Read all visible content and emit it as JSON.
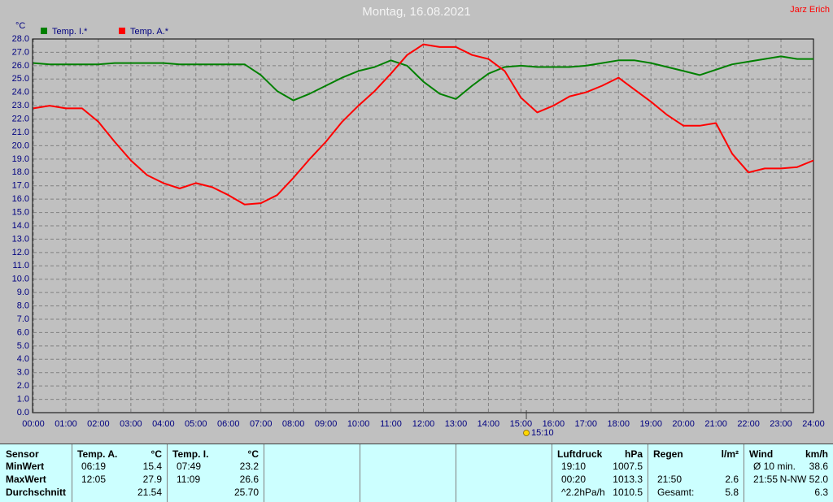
{
  "header": {
    "title": "Montag, 16.08.2021",
    "author": "Jarz Erich"
  },
  "chart_data": {
    "type": "line",
    "y_unit": "°C",
    "x": [
      0,
      0.5,
      1,
      1.5,
      2,
      2.5,
      3,
      3.5,
      4,
      4.5,
      5,
      5.5,
      6,
      6.5,
      7,
      7.5,
      8,
      8.5,
      9,
      9.5,
      10,
      10.5,
      11,
      11.5,
      12,
      12.5,
      13,
      13.5,
      14,
      14.5,
      15,
      15.5,
      16,
      16.5,
      17,
      17.5,
      18,
      18.5,
      19,
      19.5,
      20,
      20.5,
      21,
      21.5,
      22,
      22.5,
      23,
      23.5,
      24
    ],
    "series": [
      {
        "name": "Temp. I.*",
        "color": "#008000",
        "values": [
          26.2,
          26.1,
          26.1,
          26.1,
          26.1,
          26.2,
          26.2,
          26.2,
          26.2,
          26.1,
          26.1,
          26.1,
          26.1,
          26.1,
          25.3,
          24.1,
          23.4,
          23.9,
          24.5,
          25.1,
          25.6,
          25.9,
          26.4,
          26.0,
          24.8,
          23.9,
          23.5,
          24.5,
          25.4,
          25.9,
          26.0,
          25.9,
          25.9,
          25.9,
          26.0,
          26.2,
          26.4,
          26.4,
          26.2,
          25.9,
          25.6,
          25.3,
          25.7,
          26.1,
          26.3,
          26.5,
          26.7,
          26.5,
          26.5
        ]
      },
      {
        "name": "Temp. A.*",
        "color": "#ff0000",
        "values": [
          22.8,
          23.0,
          22.8,
          22.8,
          21.8,
          20.3,
          18.9,
          17.8,
          17.2,
          16.8,
          17.2,
          16.9,
          16.3,
          15.6,
          15.7,
          16.3,
          17.6,
          19.0,
          20.3,
          21.8,
          23.0,
          24.1,
          25.4,
          26.8,
          27.6,
          27.4,
          27.4,
          26.8,
          26.5,
          25.6,
          23.6,
          22.5,
          23.0,
          23.7,
          24.0,
          24.5,
          25.1,
          24.2,
          23.3,
          22.3,
          21.5,
          21.5,
          21.7,
          19.4,
          18.0,
          18.3,
          18.3,
          18.4,
          18.9
        ]
      }
    ],
    "xlim": [
      0,
      24
    ],
    "xticks": [
      {
        "value": 0,
        "label": "00:00"
      },
      {
        "value": 1,
        "label": "01:00"
      },
      {
        "value": 2,
        "label": "02:00"
      },
      {
        "value": 3,
        "label": "03:00"
      },
      {
        "value": 4,
        "label": "04:00"
      },
      {
        "value": 5,
        "label": "05:00"
      },
      {
        "value": 6,
        "label": "06:00"
      },
      {
        "value": 7,
        "label": "07:00"
      },
      {
        "value": 8,
        "label": "08:00"
      },
      {
        "value": 9,
        "label": "09:00"
      },
      {
        "value": 10,
        "label": "10:00"
      },
      {
        "value": 11,
        "label": "11:00"
      },
      {
        "value": 12,
        "label": "12:00"
      },
      {
        "value": 13,
        "label": "13:00"
      },
      {
        "value": 14,
        "label": "14:00"
      },
      {
        "value": 15,
        "label": "15:00"
      },
      {
        "value": 16,
        "label": "16:00"
      },
      {
        "value": 17,
        "label": "17:00"
      },
      {
        "value": 18,
        "label": "18:00"
      },
      {
        "value": 19,
        "label": "19:00"
      },
      {
        "value": 20,
        "label": "20:00"
      },
      {
        "value": 21,
        "label": "21:00"
      },
      {
        "value": 22,
        "label": "22:00"
      },
      {
        "value": 23,
        "label": "23:00"
      },
      {
        "value": 24,
        "label": "24:00"
      }
    ],
    "ylim": [
      0,
      28
    ],
    "yticks": [
      {
        "value": 0,
        "label": "0.0"
      },
      {
        "value": 1,
        "label": "1.0"
      },
      {
        "value": 2,
        "label": "2.0"
      },
      {
        "value": 3,
        "label": "3.0"
      },
      {
        "value": 4,
        "label": "4.0"
      },
      {
        "value": 5,
        "label": "5.0"
      },
      {
        "value": 6,
        "label": "6.0"
      },
      {
        "value": 7,
        "label": "7.0"
      },
      {
        "value": 8,
        "label": "8.0"
      },
      {
        "value": 9,
        "label": "9.0"
      },
      {
        "value": 10,
        "label": "10.0"
      },
      {
        "value": 11,
        "label": "11.0"
      },
      {
        "value": 12,
        "label": "12.0"
      },
      {
        "value": 13,
        "label": "13.0"
      },
      {
        "value": 14,
        "label": "14.0"
      },
      {
        "value": 15,
        "label": "15.0"
      },
      {
        "value": 16,
        "label": "16.0"
      },
      {
        "value": 17,
        "label": "17.0"
      },
      {
        "value": 18,
        "label": "18.0"
      },
      {
        "value": 19,
        "label": "19.0"
      },
      {
        "value": 20,
        "label": "20.0"
      },
      {
        "value": 21,
        "label": "21.0"
      },
      {
        "value": 22,
        "label": "22.0"
      },
      {
        "value": 23,
        "label": "23.0"
      },
      {
        "value": 24,
        "label": "24.0"
      },
      {
        "value": 25,
        "label": "25.0"
      },
      {
        "value": 26,
        "label": "26.0"
      },
      {
        "value": 27,
        "label": "27.0"
      },
      {
        "value": 28,
        "label": "28.0"
      }
    ],
    "grid": true,
    "sun_marker": {
      "value": 15.1667,
      "label": "15:10"
    }
  },
  "table": {
    "blocks": [
      {
        "header": "Sensor",
        "rows": [
          {
            "label": "MinWert"
          },
          {
            "label": "MaxWert"
          },
          {
            "label": "Durchschnitt"
          }
        ]
      },
      {
        "header": "Temp. A.",
        "unit": "°C",
        "rows": [
          {
            "label": "06:19",
            "value": "15.4"
          },
          {
            "label": "12:05",
            "value": "27.9"
          },
          {
            "value": "21.54"
          }
        ]
      },
      {
        "header": "Temp. I.",
        "unit": "°C",
        "rows": [
          {
            "label": "07:49",
            "value": "23.2"
          },
          {
            "label": "11:09",
            "value": "26.6"
          },
          {
            "value": "25.70"
          }
        ]
      },
      {
        "header": "Luftdruck",
        "unit": "hPa",
        "rows": [
          {
            "label": "19:10",
            "value": "1007.5"
          },
          {
            "label": "00:20",
            "value": "1013.3"
          },
          {
            "label": "^2.2hPa/h",
            "value": "1010.5"
          }
        ]
      },
      {
        "header": "Regen",
        "unit": "l/m²",
        "rows": [
          null,
          {
            "label": "21:50",
            "value": "2.6"
          },
          {
            "label": "Gesamt:",
            "value": "5.8"
          }
        ]
      },
      {
        "header": "Wind",
        "unit": "km/h",
        "rows": [
          {
            "label": "Ø 10 min.",
            "value": "38.6"
          },
          {
            "label": "21:55",
            "value": "N-NW 52.0"
          },
          {
            "value": "6.3"
          }
        ]
      }
    ]
  }
}
